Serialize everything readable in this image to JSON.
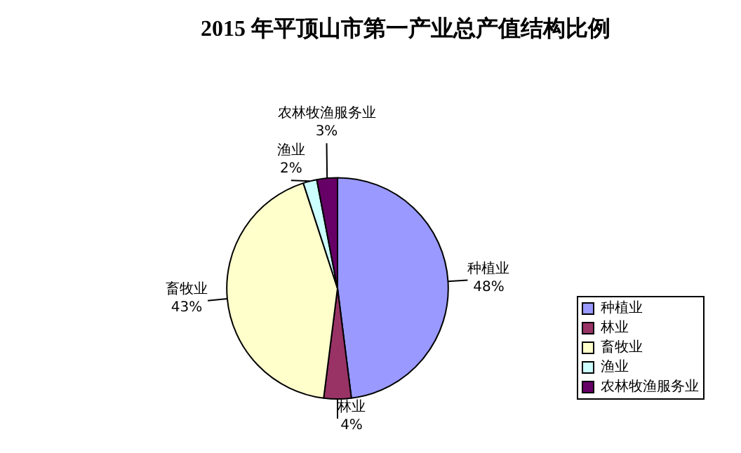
{
  "chart_data": {
    "type": "pie",
    "title": "2015 年平顶山市第一产业总产值结构比例",
    "categories": [
      "种植业",
      "林业",
      "畜牧业",
      "渔业",
      "农林牧渔服务业"
    ],
    "values": [
      48,
      4,
      43,
      2,
      3
    ],
    "value_labels": [
      "48%",
      "4%",
      "43%",
      "2%",
      "3%"
    ],
    "colors": [
      "#9999ff",
      "#993366",
      "#ffffcc",
      "#ccffff",
      "#660066"
    ],
    "legend": "right"
  }
}
